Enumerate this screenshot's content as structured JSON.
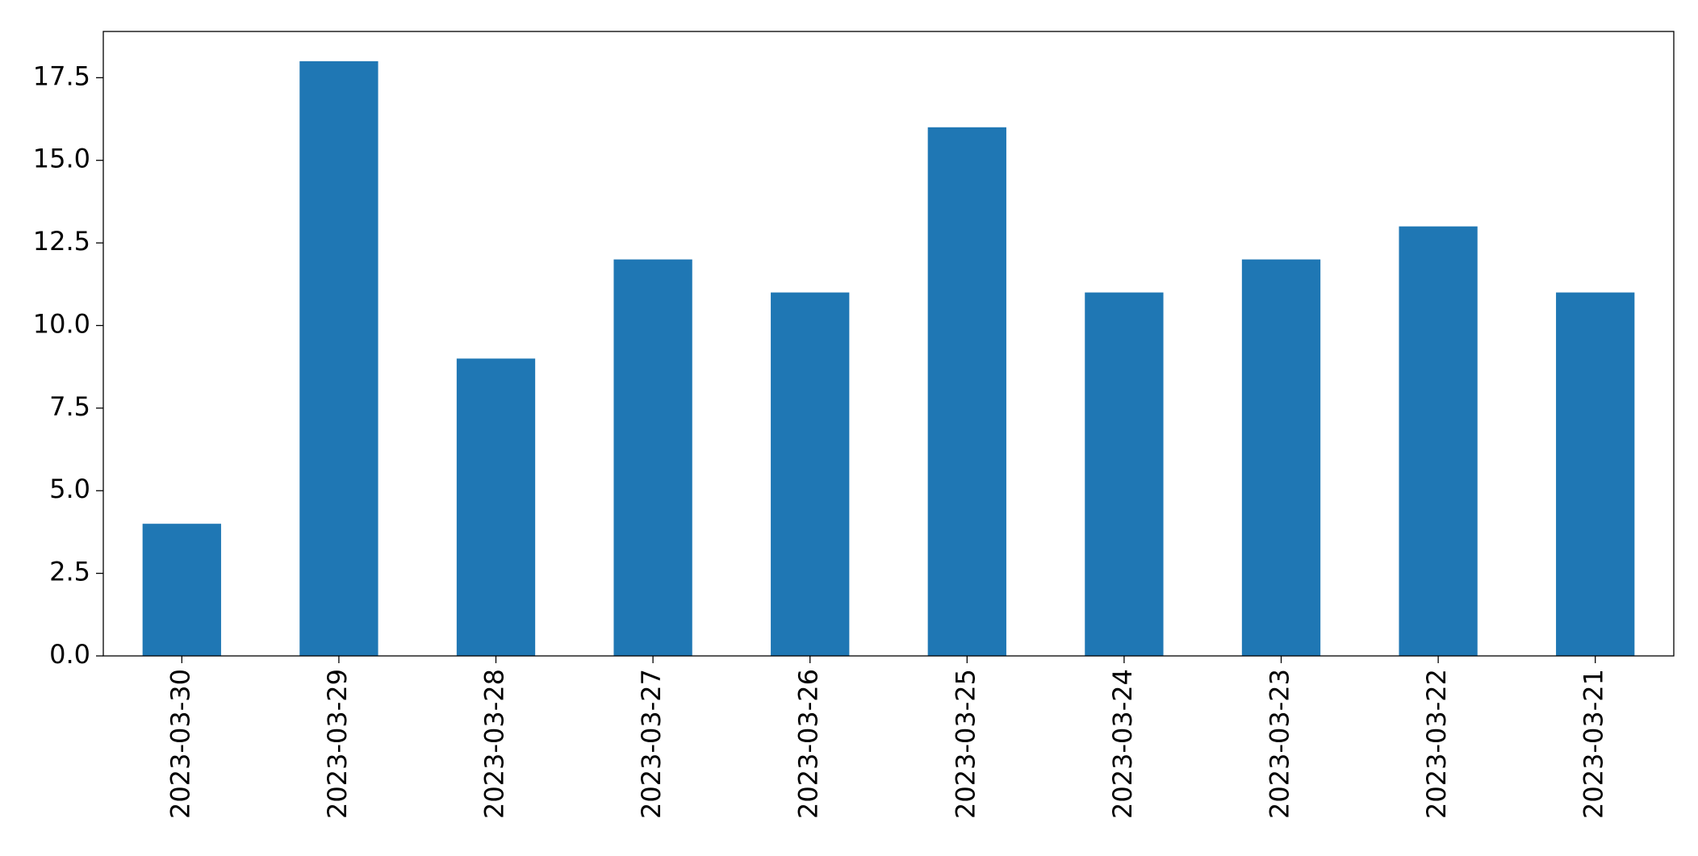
{
  "chart_data": {
    "type": "bar",
    "categories": [
      "2023-03-30",
      "2023-03-29",
      "2023-03-28",
      "2023-03-27",
      "2023-03-26",
      "2023-03-25",
      "2023-03-24",
      "2023-03-23",
      "2023-03-22",
      "2023-03-21"
    ],
    "values": [
      4,
      18,
      9,
      12,
      11,
      16,
      11,
      12,
      13,
      11
    ],
    "color": "#1f77b4",
    "ylim": [
      0,
      18.9
    ],
    "yticks": [
      {
        "value": 0,
        "label": "0.0"
      },
      2.5,
      {
        "value": 5,
        "label": "5.0"
      },
      7.5,
      {
        "value": 10,
        "label": "10.0"
      },
      12.5,
      {
        "value": 15,
        "label": "15.0"
      },
      17.5
    ],
    "grid": false
  }
}
